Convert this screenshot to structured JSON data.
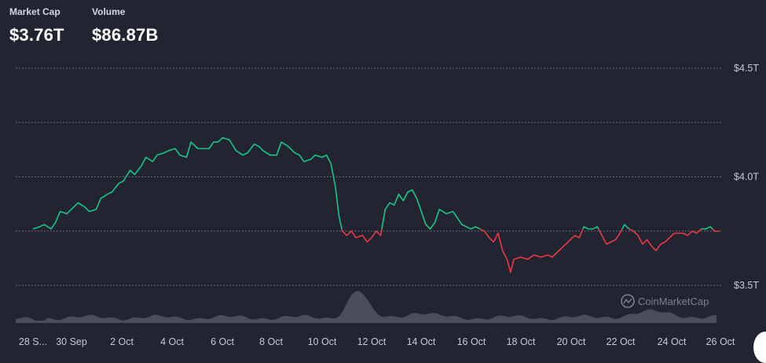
{
  "stats": {
    "market_cap_label": "Market Cap",
    "market_cap_value": "$3.76T",
    "volume_label": "Volume",
    "volume_value": "$86.87B"
  },
  "watermark": "CoinMarketCap",
  "colors": {
    "background": "#222531",
    "up": "#16c784",
    "down": "#ea3943",
    "volume": "#4a4e5c",
    "grid": "#7d8293"
  },
  "chart_data": {
    "type": "line",
    "y_ticks": [
      "$4.5T",
      "$4.0T",
      "$3.5T"
    ],
    "ylim": [
      3.5,
      4.5
    ],
    "baseline": 3.76,
    "x_ticks": [
      "28 S...",
      "30 Sep",
      "2 Oct",
      "4 Oct",
      "6 Oct",
      "8 Oct",
      "10 Oct",
      "12 Oct",
      "14 Oct",
      "16 Oct",
      "18 Oct",
      "20 Oct",
      "22 Oct",
      "24 Oct",
      "26 Oct"
    ],
    "market_cap_series": [
      [
        0.0,
        3.76
      ],
      [
        0.3,
        3.77
      ],
      [
        0.5,
        3.78
      ],
      [
        0.8,
        3.76
      ],
      [
        1.0,
        3.79
      ],
      [
        1.2,
        3.84
      ],
      [
        1.5,
        3.83
      ],
      [
        1.8,
        3.86
      ],
      [
        2.0,
        3.88
      ],
      [
        2.3,
        3.86
      ],
      [
        2.5,
        3.84
      ],
      [
        2.8,
        3.85
      ],
      [
        3.0,
        3.9
      ],
      [
        3.3,
        3.92
      ],
      [
        3.5,
        3.93
      ],
      [
        3.8,
        3.97
      ],
      [
        4.0,
        3.98
      ],
      [
        4.3,
        4.03
      ],
      [
        4.5,
        4.01
      ],
      [
        4.8,
        4.05
      ],
      [
        5.0,
        4.09
      ],
      [
        5.3,
        4.07
      ],
      [
        5.5,
        4.1
      ],
      [
        5.8,
        4.11
      ],
      [
        6.0,
        4.12
      ],
      [
        6.3,
        4.13
      ],
      [
        6.5,
        4.1
      ],
      [
        6.8,
        4.09
      ],
      [
        7.0,
        4.16
      ],
      [
        7.3,
        4.13
      ],
      [
        7.5,
        4.13
      ],
      [
        7.8,
        4.13
      ],
      [
        8.0,
        4.16
      ],
      [
        8.2,
        4.16
      ],
      [
        8.4,
        4.18
      ],
      [
        8.7,
        4.17
      ],
      [
        9.0,
        4.12
      ],
      [
        9.3,
        4.1
      ],
      [
        9.5,
        4.11
      ],
      [
        9.8,
        4.15
      ],
      [
        10.0,
        4.14
      ],
      [
        10.2,
        4.12
      ],
      [
        10.5,
        4.1
      ],
      [
        10.8,
        4.1
      ],
      [
        11.0,
        4.16
      ],
      [
        11.3,
        4.14
      ],
      [
        11.6,
        4.11
      ],
      [
        11.8,
        4.1
      ],
      [
        12.0,
        4.07
      ],
      [
        12.3,
        4.08
      ],
      [
        12.5,
        4.1
      ],
      [
        12.8,
        4.09
      ],
      [
        13.0,
        4.1
      ],
      [
        13.2,
        4.06
      ],
      [
        13.4,
        3.95
      ],
      [
        13.55,
        3.82
      ],
      [
        13.7,
        3.75
      ],
      [
        13.9,
        3.73
      ],
      [
        14.1,
        3.75
      ],
      [
        14.3,
        3.72
      ],
      [
        14.6,
        3.73
      ],
      [
        14.8,
        3.7
      ],
      [
        15.0,
        3.72
      ],
      [
        15.2,
        3.75
      ],
      [
        15.4,
        3.73
      ],
      [
        15.6,
        3.85
      ],
      [
        15.8,
        3.88
      ],
      [
        16.0,
        3.87
      ],
      [
        16.2,
        3.92
      ],
      [
        16.4,
        3.89
      ],
      [
        16.6,
        3.93
      ],
      [
        16.8,
        3.94
      ],
      [
        17.0,
        3.9
      ],
      [
        17.2,
        3.84
      ],
      [
        17.4,
        3.78
      ],
      [
        17.6,
        3.76
      ],
      [
        17.8,
        3.79
      ],
      [
        18.0,
        3.85
      ],
      [
        18.3,
        3.83
      ],
      [
        18.6,
        3.84
      ],
      [
        18.8,
        3.81
      ],
      [
        19.0,
        3.78
      ],
      [
        19.2,
        3.77
      ],
      [
        19.4,
        3.76
      ],
      [
        19.6,
        3.77
      ],
      [
        19.8,
        3.76
      ],
      [
        20.0,
        3.75
      ],
      [
        20.2,
        3.72
      ],
      [
        20.4,
        3.7
      ],
      [
        20.6,
        3.74
      ],
      [
        20.8,
        3.66
      ],
      [
        21.0,
        3.62
      ],
      [
        21.15,
        3.56
      ],
      [
        21.3,
        3.62
      ],
      [
        21.6,
        3.63
      ],
      [
        21.9,
        3.62
      ],
      [
        22.2,
        3.64
      ],
      [
        22.5,
        3.63
      ],
      [
        22.8,
        3.64
      ],
      [
        23.0,
        3.63
      ],
      [
        23.3,
        3.66
      ],
      [
        23.6,
        3.69
      ],
      [
        23.8,
        3.71
      ],
      [
        24.0,
        3.73
      ],
      [
        24.2,
        3.72
      ],
      [
        24.4,
        3.77
      ],
      [
        24.6,
        3.76
      ],
      [
        24.8,
        3.76
      ],
      [
        25.0,
        3.77
      ],
      [
        25.2,
        3.73
      ],
      [
        25.4,
        3.69
      ],
      [
        25.6,
        3.7
      ],
      [
        25.8,
        3.71
      ],
      [
        26.0,
        3.74
      ],
      [
        26.2,
        3.78
      ],
      [
        26.4,
        3.76
      ],
      [
        26.6,
        3.75
      ],
      [
        26.8,
        3.73
      ],
      [
        27.0,
        3.69
      ],
      [
        27.2,
        3.71
      ],
      [
        27.4,
        3.68
      ],
      [
        27.6,
        3.66
      ],
      [
        27.8,
        3.69
      ],
      [
        28.0,
        3.7
      ],
      [
        28.2,
        3.72
      ],
      [
        28.4,
        3.74
      ],
      [
        28.6,
        3.74
      ],
      [
        28.8,
        3.74
      ],
      [
        29.0,
        3.73
      ],
      [
        29.2,
        3.75
      ],
      [
        29.4,
        3.74
      ],
      [
        29.6,
        3.76
      ],
      [
        29.8,
        3.76
      ],
      [
        30.0,
        3.77
      ],
      [
        30.2,
        3.75
      ],
      [
        30.4,
        3.75
      ]
    ]
  }
}
